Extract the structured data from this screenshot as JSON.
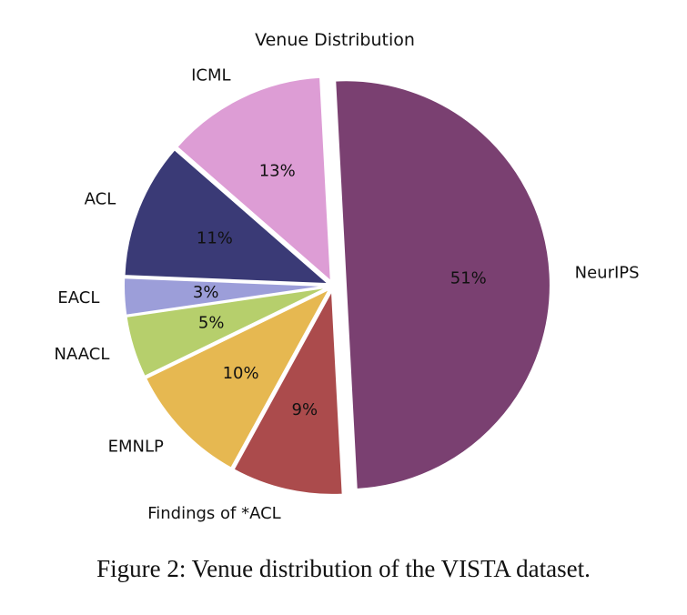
{
  "chart_data": {
    "type": "pie",
    "title": "Venue Distribution",
    "slices": [
      {
        "label": "NeurIPS",
        "value": 51,
        "pct_label": "51%",
        "color": "#7a4071",
        "exploded": true
      },
      {
        "label": "Findings of *ACL",
        "value": 9,
        "pct_label": "9%",
        "color": "#ab4b4c"
      },
      {
        "label": "EMNLP",
        "value": 10,
        "pct_label": "10%",
        "color": "#e6b851"
      },
      {
        "label": "NAACL",
        "value": 5,
        "pct_label": "5%",
        "color": "#b6cf6c"
      },
      {
        "label": "EACL",
        "value": 3,
        "pct_label": "3%",
        "color": "#9c9ed9"
      },
      {
        "label": "ACL",
        "value": 11,
        "pct_label": "11%",
        "color": "#3a3a76"
      },
      {
        "label": "ICML",
        "value": 13,
        "pct_label": "13%",
        "color": "#dd9dd5"
      }
    ]
  },
  "caption": "Figure 2: Venue distribution of the VISTA dataset."
}
